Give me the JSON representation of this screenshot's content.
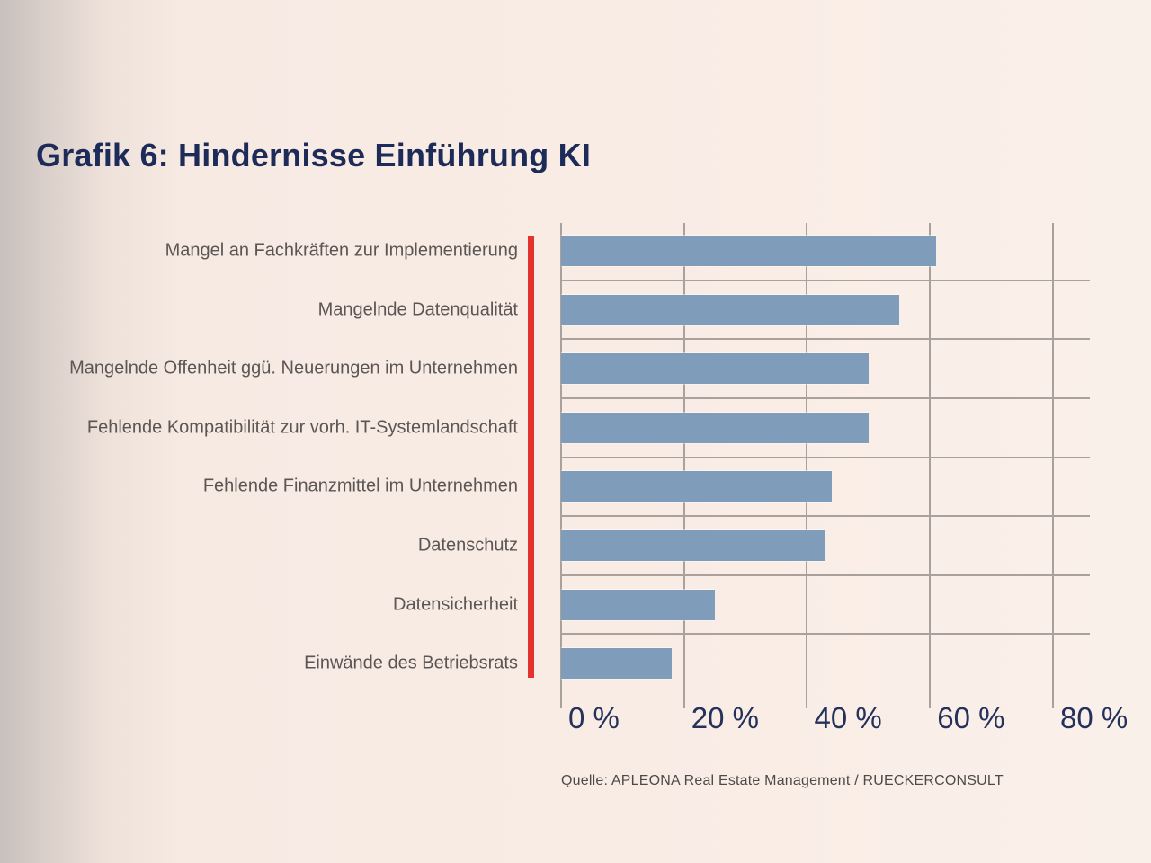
{
  "page": {
    "title": "Grafik 6: Hindernisse Einführung KI",
    "source": "Quelle: APLEONA Real Estate Management / RUECKERCONSULT"
  },
  "chart_data": {
    "type": "bar",
    "orientation": "horizontal",
    "title": "Grafik 6: Hindernisse Einführung KI",
    "categories": [
      "Mangel an Fachkräften zur Implementierung",
      "Mangelnde Datenqualität",
      "Mangelnde Offenheit ggü. Neuerungen im Unternehmen",
      "Fehlende Kompatibilität zur vorh. IT-Systemlandschaft",
      "Fehlende Finanzmittel im Unternehmen",
      "Datenschutz",
      "Datensicherheit",
      "Einwände des Betriebsrats"
    ],
    "values": [
      61,
      55,
      50,
      50,
      44,
      43,
      25,
      18
    ],
    "unit": "%",
    "x_ticks": [
      {
        "value": 0,
        "label": "0 %"
      },
      {
        "value": 20,
        "label": "20 %"
      },
      {
        "value": 40,
        "label": "40 %"
      },
      {
        "value": 60,
        "label": "60 %"
      },
      {
        "value": 80,
        "label": "80 %"
      }
    ],
    "xlim": [
      0,
      86
    ],
    "grid": true,
    "legend": "none",
    "source": "Quelle: APLEONA Real Estate Management / RUECKERCONSULT",
    "colors": {
      "bar": "#7f9dba",
      "accent_line": "#e2342c",
      "grid": "#a9a19c",
      "title": "#1d2b58",
      "axis_label": "#24315a",
      "category_label": "#5b5654",
      "background": "#f9ece5"
    }
  }
}
